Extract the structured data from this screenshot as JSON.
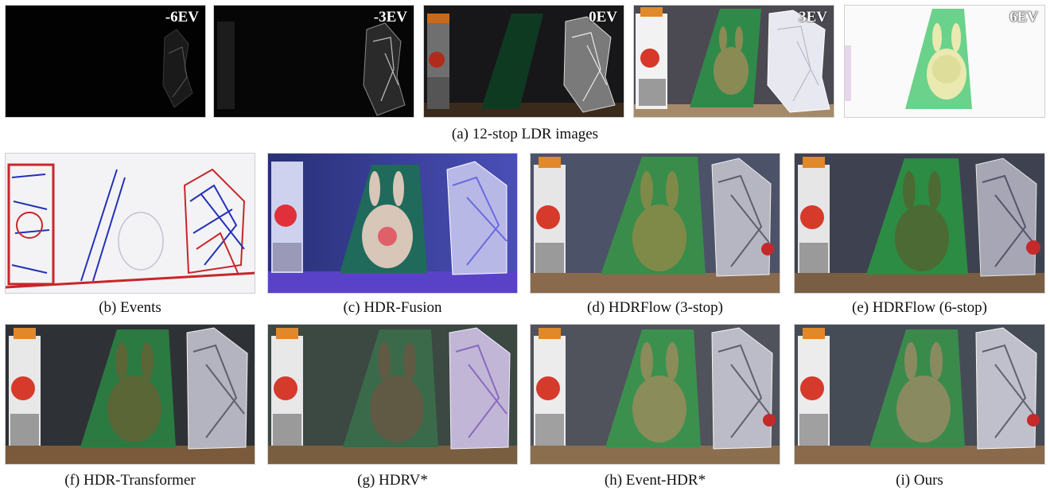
{
  "row_a": {
    "exposures": [
      "-6EV",
      "-3EV",
      "0EV",
      "3EV",
      "6EV"
    ],
    "caption": "(a) 12-stop LDR images"
  },
  "captions": {
    "b": "(b) Events",
    "c": "(c) HDR-Fusion",
    "d": "(d) HDRFlow (3-stop)",
    "e": "(e) HDRFlow (6-stop)",
    "f": "(f) HDR-Transformer",
    "g": "(g) HDRV*",
    "h": "(h)  Event-HDR*",
    "i": "(i)  Ours"
  }
}
